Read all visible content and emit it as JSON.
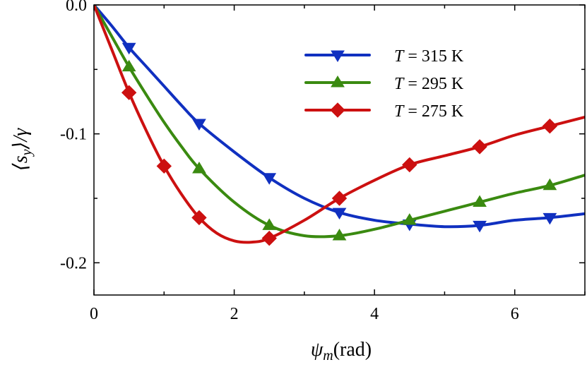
{
  "chart_data": {
    "type": "line",
    "title": "",
    "xlabel": {
      "symbol": "ψ",
      "subscript": "m",
      "unit": "(rad)"
    },
    "ylabel": {
      "text": "⟨s",
      "subscript": "y",
      "suffix": "⟩/γ"
    },
    "xlim": [
      0,
      7
    ],
    "ylim": [
      -0.225,
      0
    ],
    "xticks": [
      {
        "value": 0,
        "label": "0"
      },
      {
        "value": 2,
        "label": "2"
      },
      {
        "value": 4,
        "label": "4"
      },
      {
        "value": 6,
        "label": "6"
      }
    ],
    "yticks": [
      {
        "value": 0.0,
        "label": "0.0"
      },
      {
        "value": -0.1,
        "label": "-0.1"
      },
      {
        "value": -0.2,
        "label": "-0.2"
      }
    ],
    "legend_position": "upper-right",
    "series": [
      {
        "name": "T = 315 K",
        "label_var": "T",
        "label_rest": " = 315 K",
        "color": "#1030c0",
        "marker": "triangle-down",
        "curve": [
          [
            0,
            0
          ],
          [
            0.25,
            -0.016
          ],
          [
            0.5,
            -0.033
          ],
          [
            0.75,
            -0.048
          ],
          [
            1.0,
            -0.063
          ],
          [
            1.25,
            -0.078
          ],
          [
            1.5,
            -0.092
          ],
          [
            2.0,
            -0.114
          ],
          [
            2.5,
            -0.134
          ],
          [
            3.0,
            -0.15
          ],
          [
            3.5,
            -0.161
          ],
          [
            4.0,
            -0.167
          ],
          [
            4.5,
            -0.17
          ],
          [
            5.0,
            -0.172
          ],
          [
            5.5,
            -0.171
          ],
          [
            6.0,
            -0.167
          ],
          [
            6.5,
            -0.165
          ],
          [
            7.0,
            -0.162
          ]
        ],
        "markers": [
          [
            0.5,
            -0.033
          ],
          [
            1.5,
            -0.092
          ],
          [
            2.5,
            -0.134
          ],
          [
            3.5,
            -0.161
          ],
          [
            4.5,
            -0.17
          ],
          [
            5.5,
            -0.171
          ],
          [
            6.5,
            -0.165
          ]
        ]
      },
      {
        "name": "T = 295 K",
        "label_var": "T",
        "label_rest": " = 295 K",
        "color": "#3a8a10",
        "marker": "triangle-up",
        "curve": [
          [
            0,
            0
          ],
          [
            0.25,
            -0.024
          ],
          [
            0.5,
            -0.048
          ],
          [
            0.75,
            -0.07
          ],
          [
            1.0,
            -0.091
          ],
          [
            1.25,
            -0.11
          ],
          [
            1.5,
            -0.127
          ],
          [
            2.0,
            -0.153
          ],
          [
            2.5,
            -0.171
          ],
          [
            3.0,
            -0.179
          ],
          [
            3.5,
            -0.179
          ],
          [
            4.0,
            -0.174
          ],
          [
            4.5,
            -0.167
          ],
          [
            5.0,
            -0.16
          ],
          [
            5.5,
            -0.153
          ],
          [
            6.0,
            -0.146
          ],
          [
            6.5,
            -0.14
          ],
          [
            7.0,
            -0.132
          ]
        ],
        "markers": [
          [
            0.5,
            -0.048
          ],
          [
            1.5,
            -0.127
          ],
          [
            2.5,
            -0.171
          ],
          [
            3.5,
            -0.179
          ],
          [
            4.5,
            -0.167
          ],
          [
            5.5,
            -0.153
          ],
          [
            6.5,
            -0.14
          ]
        ]
      },
      {
        "name": "T = 275 K",
        "label_var": "T",
        "label_rest": " = 275 K",
        "color": "#cc1010",
        "marker": "diamond",
        "curve": [
          [
            0,
            0
          ],
          [
            0.25,
            -0.034
          ],
          [
            0.5,
            -0.068
          ],
          [
            0.75,
            -0.098
          ],
          [
            1.0,
            -0.125
          ],
          [
            1.25,
            -0.147
          ],
          [
            1.5,
            -0.165
          ],
          [
            1.75,
            -0.177
          ],
          [
            2.0,
            -0.183
          ],
          [
            2.25,
            -0.184
          ],
          [
            2.5,
            -0.181
          ],
          [
            3.0,
            -0.167
          ],
          [
            3.5,
            -0.15
          ],
          [
            4.0,
            -0.136
          ],
          [
            4.5,
            -0.124
          ],
          [
            5.0,
            -0.117
          ],
          [
            5.5,
            -0.11
          ],
          [
            6.0,
            -0.101
          ],
          [
            6.5,
            -0.094
          ],
          [
            7.0,
            -0.087
          ]
        ],
        "markers": [
          [
            0.5,
            -0.068
          ],
          [
            1.0,
            -0.125
          ],
          [
            1.5,
            -0.165
          ],
          [
            2.5,
            -0.181
          ],
          [
            3.5,
            -0.15
          ],
          [
            4.5,
            -0.124
          ],
          [
            5.5,
            -0.11
          ],
          [
            6.5,
            -0.094
          ]
        ]
      }
    ]
  }
}
